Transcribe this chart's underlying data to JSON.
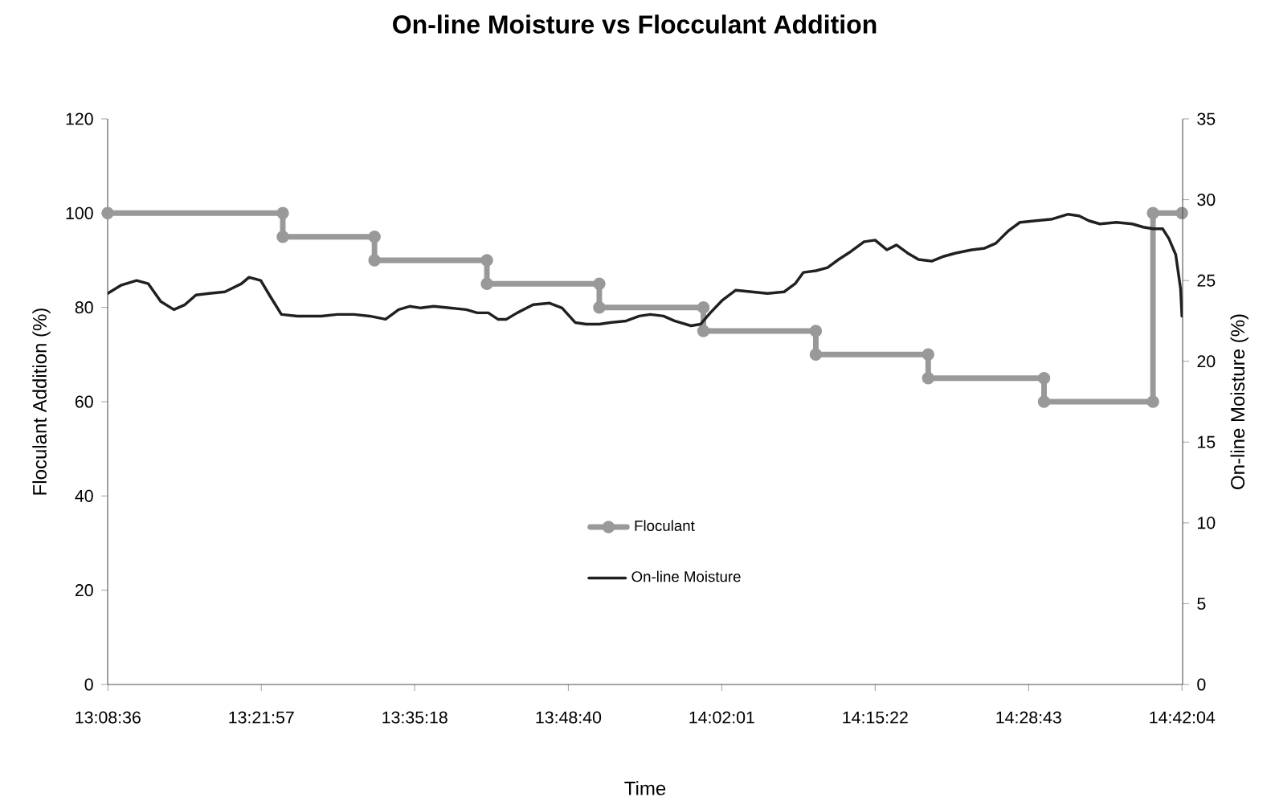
{
  "chart_data": {
    "type": "line",
    "title": "On-line Moisture vs Flocculant Addition",
    "xlabel": "Time",
    "ylabel": "Floculant Addition (%)",
    "y2label": "On-line Moisture (%)",
    "xlim": [
      13.143,
      14.702
    ],
    "xticks": [
      {
        "value": 13.14333,
        "label": "13:08:36"
      },
      {
        "value": 13.36583,
        "label": "13:21:57"
      },
      {
        "value": 13.58833,
        "label": "13:35:18"
      },
      {
        "value": 13.81111,
        "label": "13:48:40"
      },
      {
        "value": 14.03361,
        "label": "14:02:01"
      },
      {
        "value": 14.25611,
        "label": "14:15:22"
      },
      {
        "value": 14.47861,
        "label": "14:28:43"
      },
      {
        "value": 14.70111,
        "label": "14:42:04"
      }
    ],
    "ylim": [
      0,
      120
    ],
    "yticks": [
      0,
      20,
      40,
      60,
      80,
      100,
      120
    ],
    "y2lim": [
      0,
      35
    ],
    "y2ticks": [
      0,
      5,
      10,
      15,
      20,
      25,
      30,
      35
    ],
    "grid": false,
    "legend": "bottom",
    "series": [
      {
        "name": "Floculant",
        "color": "#999999",
        "marker": "circle",
        "x": [
          13.143,
          13.397,
          13.397,
          13.53,
          13.53,
          13.693,
          13.693,
          13.856,
          13.856,
          14.007,
          14.007,
          14.17,
          14.17,
          14.333,
          14.333,
          14.501,
          14.501,
          14.659,
          14.659,
          14.701
        ],
        "values": [
          100,
          100,
          95,
          95,
          90,
          90,
          85,
          85,
          80,
          80,
          75,
          75,
          70,
          70,
          65,
          65,
          60,
          60,
          100,
          100
        ]
      },
      {
        "name": "On-line Moisture",
        "color": "#231f20",
        "marker": "none",
        "axis": "y2",
        "x": [
          13.143,
          13.162,
          13.185,
          13.202,
          13.22,
          13.239,
          13.255,
          13.271,
          13.29,
          13.313,
          13.337,
          13.348,
          13.365,
          13.379,
          13.395,
          13.418,
          13.453,
          13.476,
          13.5,
          13.523,
          13.546,
          13.565,
          13.581,
          13.597,
          13.616,
          13.639,
          13.663,
          13.679,
          13.695,
          13.709,
          13.721,
          13.737,
          13.76,
          13.784,
          13.802,
          13.821,
          13.837,
          13.856,
          13.872,
          13.895,
          13.914,
          13.93,
          13.949,
          13.965,
          13.989,
          14.003,
          14.017,
          14.035,
          14.054,
          14.077,
          14.1,
          14.124,
          14.14,
          14.152,
          14.17,
          14.187,
          14.203,
          14.221,
          14.24,
          14.256,
          14.273,
          14.287,
          14.303,
          14.319,
          14.338,
          14.356,
          14.373,
          14.396,
          14.415,
          14.431,
          14.45,
          14.466,
          14.489,
          14.513,
          14.536,
          14.552,
          14.566,
          14.582,
          14.606,
          14.629,
          14.645,
          14.659,
          14.673,
          14.682,
          14.692,
          14.699,
          14.701
        ],
        "values": [
          24.2,
          24.7,
          25.0,
          24.8,
          23.7,
          23.2,
          23.5,
          24.1,
          24.2,
          24.3,
          24.8,
          25.2,
          25.0,
          24.0,
          22.9,
          22.8,
          22.8,
          22.9,
          22.9,
          22.8,
          22.6,
          23.2,
          23.4,
          23.3,
          23.4,
          23.3,
          23.2,
          23.0,
          23.0,
          22.6,
          22.6,
          23.0,
          23.5,
          23.6,
          23.3,
          22.4,
          22.3,
          22.3,
          22.4,
          22.5,
          22.8,
          22.9,
          22.8,
          22.5,
          22.2,
          22.3,
          23.0,
          23.8,
          24.4,
          24.3,
          24.2,
          24.3,
          24.8,
          25.5,
          25.6,
          25.8,
          26.3,
          26.8,
          27.4,
          27.5,
          26.9,
          27.2,
          26.7,
          26.3,
          26.2,
          26.5,
          26.7,
          26.9,
          27.0,
          27.3,
          28.1,
          28.6,
          28.7,
          28.8,
          29.1,
          29.0,
          28.7,
          28.5,
          28.6,
          28.5,
          28.3,
          28.2,
          28.2,
          27.6,
          26.6,
          24.5,
          22.8
        ]
      }
    ]
  }
}
